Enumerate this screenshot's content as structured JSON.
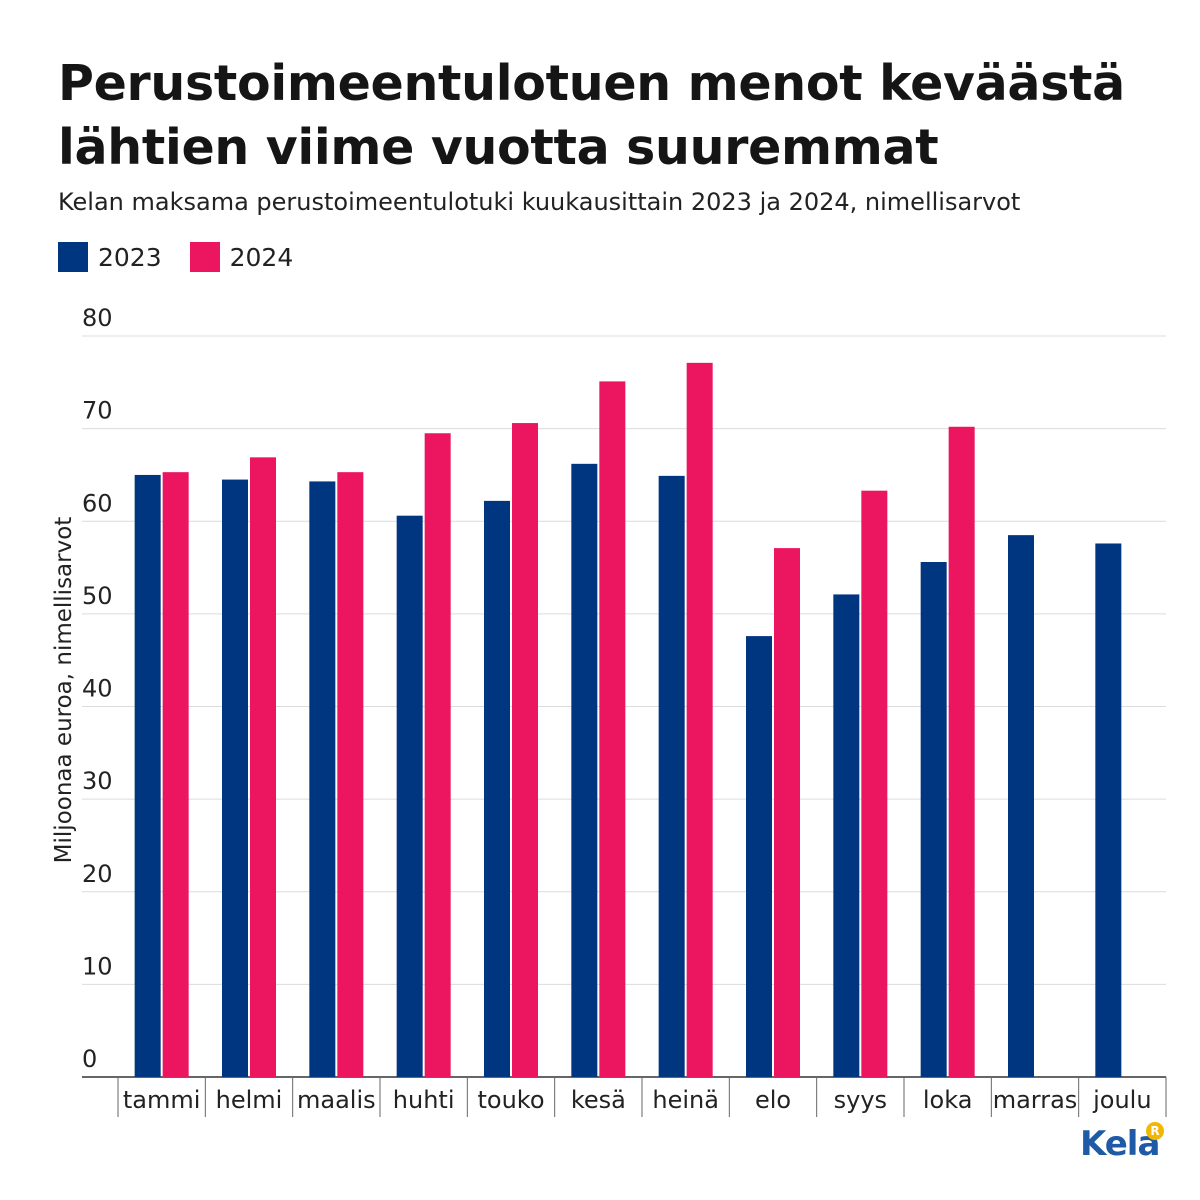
{
  "header": {
    "title": "Perustoimeentulotuen menot keväästä lähtien viime vuotta suuremmat",
    "subtitle": "Kelan maksama perustoimeentulotuki kuukausittain 2023 ja 2024, nimellisarvot"
  },
  "logo": {
    "text": "Kela",
    "badge": "R"
  },
  "chart_data": {
    "type": "bar",
    "categories": [
      "tammi",
      "helmi",
      "maalis",
      "huhti",
      "touko",
      "kesä",
      "heinä",
      "elo",
      "syys",
      "loka",
      "marras",
      "joulu"
    ],
    "series": [
      {
        "name": "2023",
        "color": "#003580",
        "values": [
          65.0,
          64.5,
          64.3,
          60.6,
          62.2,
          66.2,
          64.9,
          47.6,
          52.1,
          55.6,
          58.5,
          57.6
        ]
      },
      {
        "name": "2024",
        "color": "#ec1560",
        "values": [
          65.3,
          66.9,
          65.3,
          69.5,
          70.6,
          75.1,
          77.1,
          57.1,
          63.3,
          70.2,
          null,
          null
        ]
      }
    ],
    "ylabel": "Miljoonaa euroa, nimellisarvot",
    "xlabel": "",
    "ylim": [
      0,
      80
    ],
    "yticks": [
      0,
      10,
      20,
      30,
      40,
      50,
      60,
      70,
      80
    ],
    "grid": true,
    "legend_position": "top-left"
  }
}
